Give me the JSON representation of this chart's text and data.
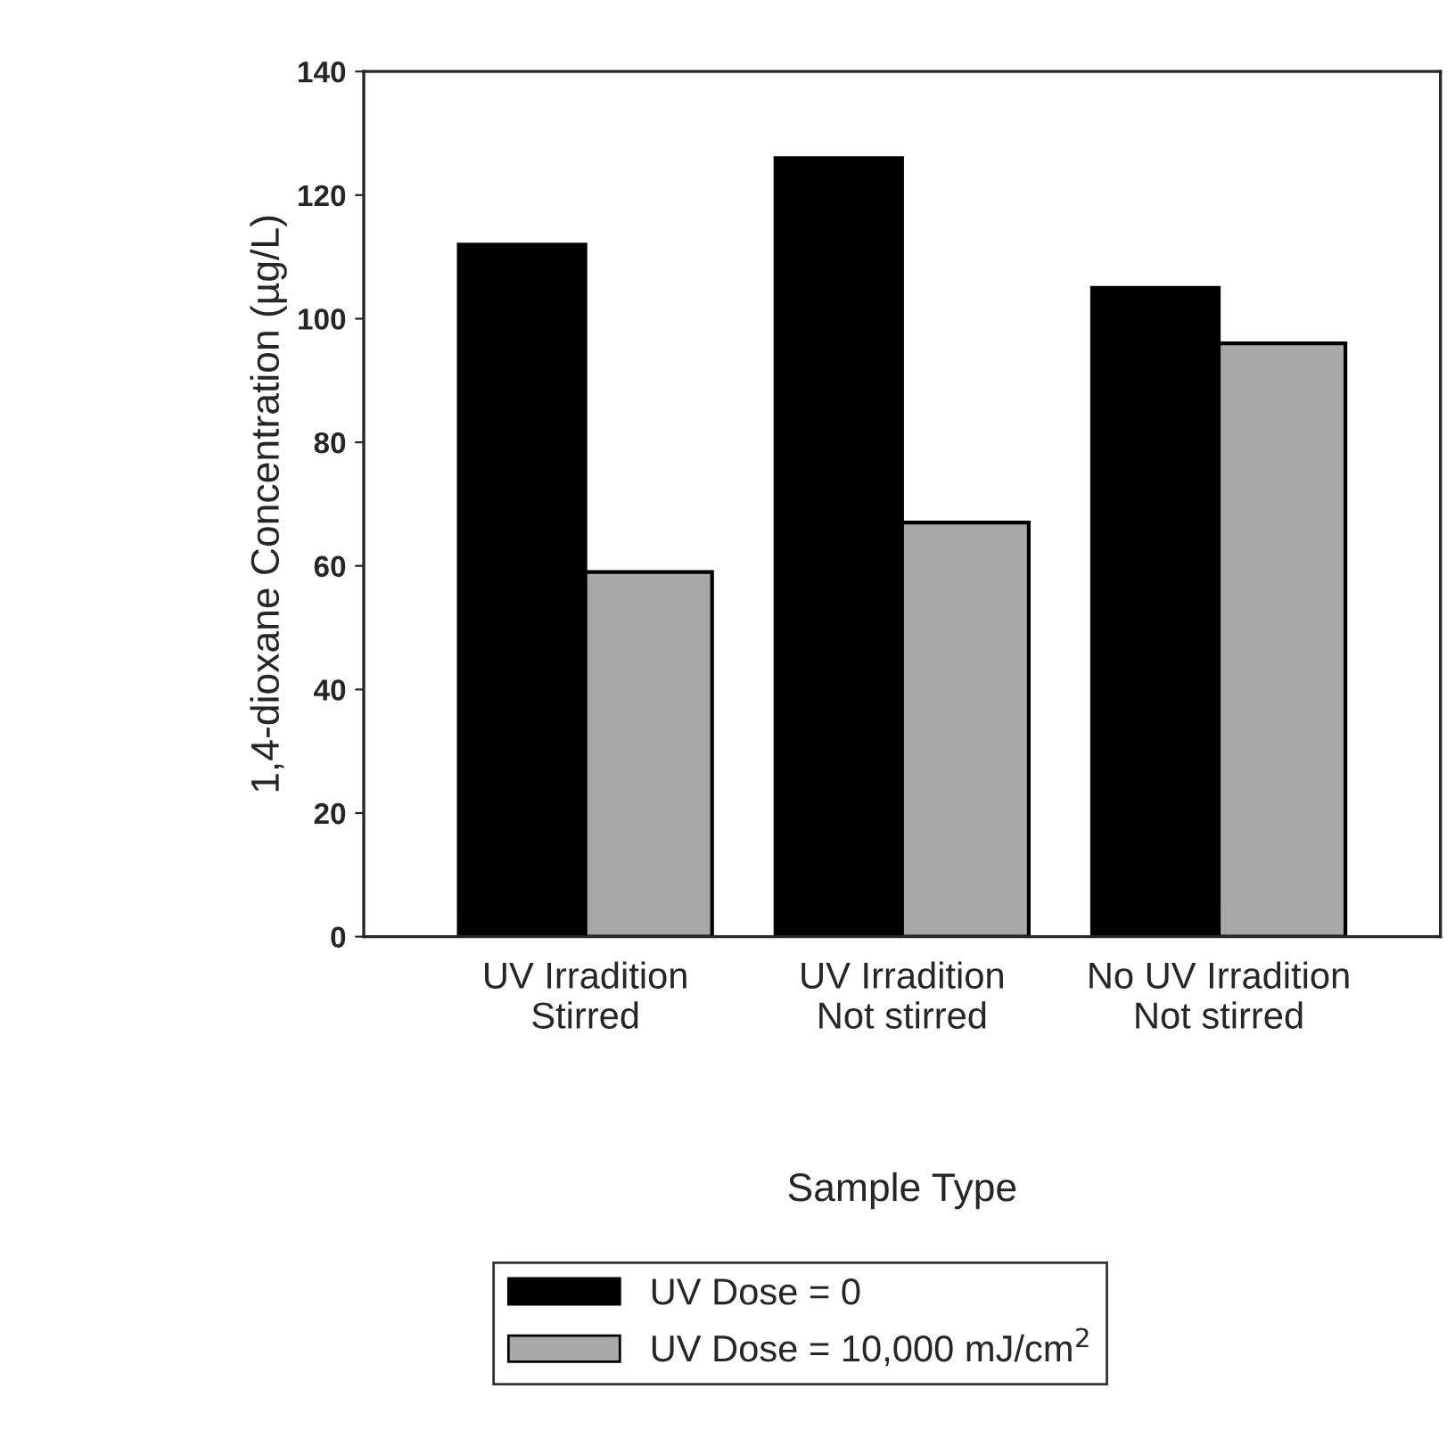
{
  "chart_data": {
    "type": "bar",
    "xlabel": "Sample Type",
    "ylabel": "1,4-dioxane Concentration (µg/L)",
    "categories": [
      "UV Irradition\nStirred",
      "UV Irradition\nNot stirred",
      "No UV Irradition\nNot stirred"
    ],
    "series": [
      {
        "name": "UV Dose = 0",
        "color": "#000000",
        "values": [
          112,
          126,
          105
        ]
      },
      {
        "name": "UV Dose = 10,000 mJ/cm$^{2}$",
        "color": "#a8a8a8",
        "values": [
          59,
          67,
          96
        ]
      }
    ],
    "ylim": [
      0,
      140
    ],
    "yticks": [
      0,
      20,
      40,
      60,
      80,
      100,
      120,
      140
    ],
    "grid": false,
    "legend": "bottom"
  }
}
